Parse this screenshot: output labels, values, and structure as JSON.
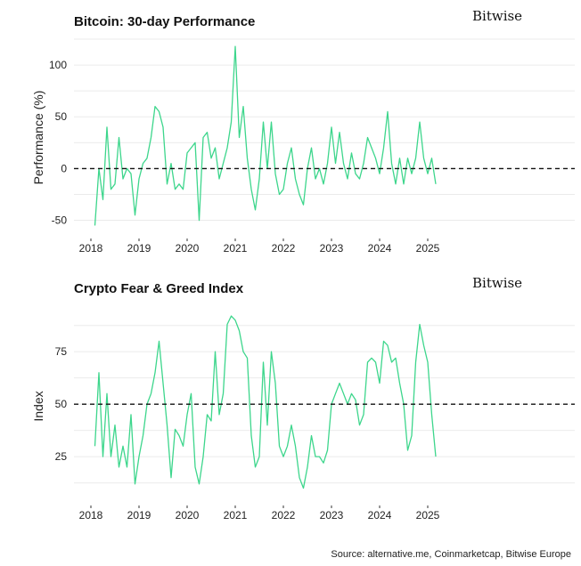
{
  "chart_data": [
    {
      "type": "line",
      "title": "Bitcoin: 30-day Performance",
      "logo": "Bitwise",
      "ylabel": "Performance (%)",
      "xlabel": "",
      "ylim": [
        -65,
        125
      ],
      "yticks": [
        -50,
        0,
        50,
        100
      ],
      "xticks": [
        "2018",
        "2019",
        "2020",
        "2021",
        "2022",
        "2023",
        "2024",
        "2025"
      ],
      "reference_line": 0,
      "grid": true,
      "color": "#3dd68c",
      "start": "2018-02",
      "frequency": "monthly",
      "values": [
        -55,
        0,
        -30,
        40,
        -20,
        -15,
        30,
        -10,
        0,
        -5,
        -45,
        -10,
        5,
        10,
        30,
        60,
        55,
        40,
        -15,
        5,
        -20,
        -15,
        -20,
        15,
        20,
        25,
        -50,
        30,
        35,
        10,
        20,
        -10,
        5,
        20,
        45,
        118,
        30,
        60,
        10,
        -20,
        -40,
        -10,
        45,
        0,
        45,
        -5,
        -25,
        -20,
        5,
        20,
        -10,
        -25,
        -35,
        0,
        20,
        -10,
        0,
        -15,
        5,
        40,
        5,
        35,
        5,
        -10,
        15,
        -5,
        -10,
        5,
        30,
        20,
        10,
        -5,
        20,
        55,
        5,
        -15,
        10,
        -15,
        10,
        -5,
        10,
        45,
        10,
        -5,
        10,
        -15
      ]
    },
    {
      "type": "line",
      "title": "Crypto Fear & Greed Index",
      "logo": "Bitwise",
      "ylabel": "Index",
      "xlabel": "",
      "ylim": [
        3,
        95
      ],
      "yticks": [
        25,
        50,
        75
      ],
      "xticks": [
        "2018",
        "2019",
        "2020",
        "2021",
        "2022",
        "2023",
        "2024",
        "2025"
      ],
      "reference_line": 50,
      "grid": true,
      "color": "#3dd68c",
      "start": "2018-02",
      "frequency": "monthly",
      "values": [
        30,
        65,
        25,
        55,
        25,
        40,
        20,
        30,
        20,
        45,
        12,
        25,
        35,
        50,
        55,
        65,
        80,
        60,
        40,
        15,
        38,
        35,
        30,
        45,
        55,
        20,
        12,
        25,
        45,
        42,
        75,
        45,
        55,
        88,
        92,
        90,
        85,
        75,
        72,
        35,
        20,
        25,
        70,
        40,
        75,
        60,
        30,
        25,
        30,
        40,
        30,
        15,
        10,
        20,
        35,
        25,
        25,
        22,
        28,
        50,
        55,
        60,
        55,
        50,
        55,
        52,
        40,
        45,
        70,
        72,
        70,
        60,
        80,
        78,
        70,
        72,
        60,
        50,
        28,
        35,
        70,
        88,
        78,
        70,
        45,
        25
      ]
    }
  ],
  "source": "Source: alternative.me, Coinmarketcap, Bitwise Europe"
}
